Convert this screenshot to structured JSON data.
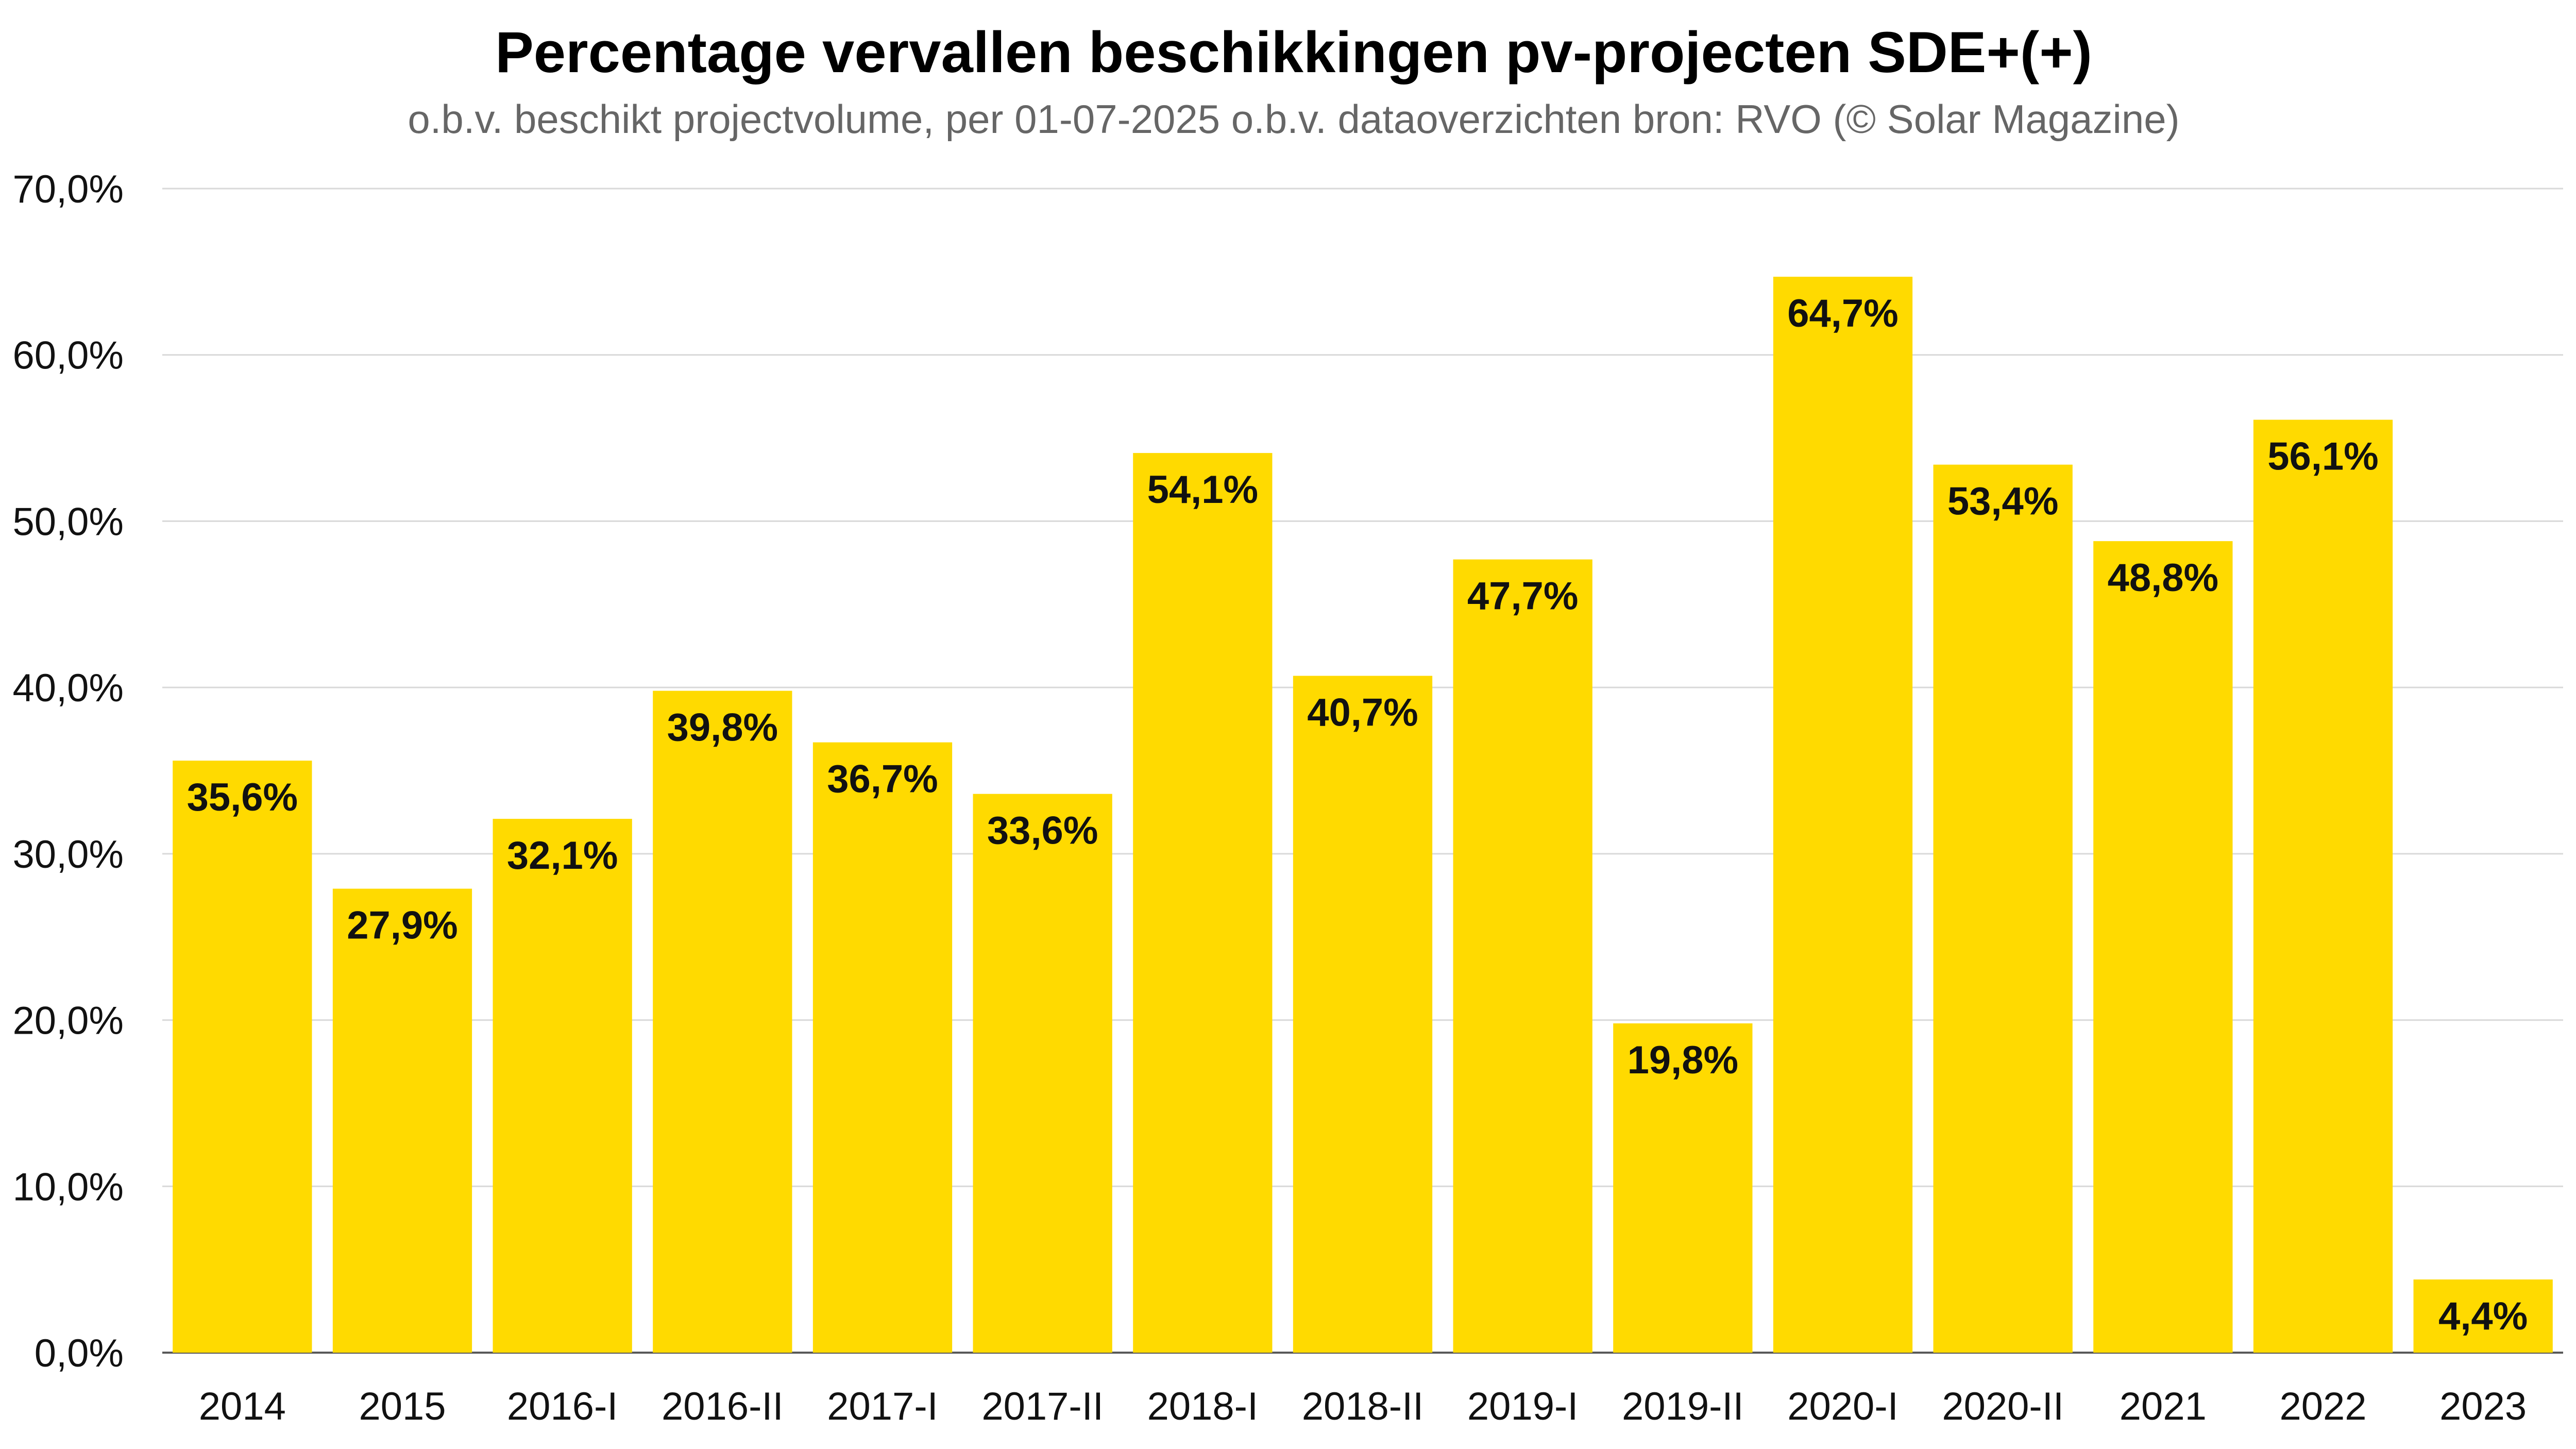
{
  "chart_data": {
    "type": "bar",
    "title": "Percentage vervallen beschikkingen pv-projecten SDE+(+)",
    "subtitle": "o.b.v. beschikt projectvolume, per 01-07-2025 o.b.v. dataoverzichten bron: RVO (© Solar Magazine)",
    "categories": [
      "2014",
      "2015",
      "2016-I",
      "2016-II",
      "2017-I",
      "2017-II",
      "2018-I",
      "2018-II",
      "2019-I",
      "2019-II",
      "2020-I",
      "2020-II",
      "2021",
      "2022",
      "2023"
    ],
    "values": [
      35.6,
      27.9,
      32.1,
      39.8,
      36.7,
      33.6,
      54.1,
      40.7,
      47.7,
      19.8,
      64.7,
      53.4,
      48.8,
      56.1,
      4.4
    ],
    "data_labels": [
      "35,6%",
      "27,9%",
      "32,1%",
      "39,8%",
      "36,7%",
      "33,6%",
      "54,1%",
      "40,7%",
      "47,7%",
      "19,8%",
      "64,7%",
      "53,4%",
      "48,8%",
      "56,1%",
      "4,4%"
    ],
    "y_ticks": [
      0,
      10,
      20,
      30,
      40,
      50,
      60,
      70
    ],
    "y_tick_labels": [
      "0,0%",
      "10,0%",
      "20,0%",
      "30,0%",
      "40,0%",
      "50,0%",
      "60,0%",
      "70,0%"
    ],
    "ylim": [
      0,
      70
    ],
    "grid": true,
    "legend": "none",
    "colors": {
      "bar": "#FFDA00",
      "title": "#000000",
      "subtitle": "#666666",
      "axis_text": "#111111",
      "gridline": "#D9D9D9",
      "axis_line": "#595959"
    }
  }
}
